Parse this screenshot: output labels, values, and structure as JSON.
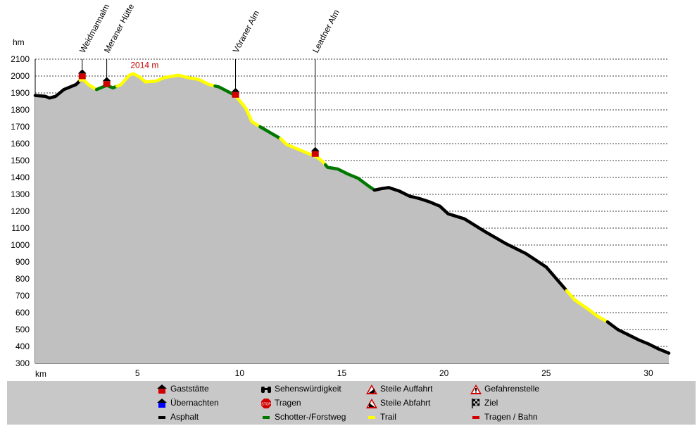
{
  "chart_data": {
    "type": "area",
    "title": "",
    "xlabel": "km",
    "ylabel": "hm",
    "xlim": [
      0,
      31
    ],
    "ylim": [
      300,
      2100
    ],
    "x_ticks": [
      5,
      10,
      15,
      20,
      25,
      30
    ],
    "y_ticks": [
      300,
      400,
      500,
      600,
      700,
      800,
      900,
      1000,
      1100,
      1200,
      1300,
      1400,
      1500,
      1600,
      1700,
      1800,
      1900,
      2000,
      2100
    ],
    "grid": true,
    "profile": [
      [
        0,
        1885
      ],
      [
        0.5,
        1880
      ],
      [
        0.7,
        1870
      ],
      [
        1.0,
        1880
      ],
      [
        1.4,
        1920
      ],
      [
        1.8,
        1940
      ],
      [
        2.0,
        1950
      ],
      [
        2.3,
        1985
      ],
      [
        2.6,
        1950
      ],
      [
        3.0,
        1920
      ],
      [
        3.3,
        1935
      ],
      [
        3.5,
        1945
      ],
      [
        3.8,
        1930
      ],
      [
        4.2,
        1950
      ],
      [
        4.6,
        2005
      ],
      [
        4.8,
        2014
      ],
      [
        5.1,
        1995
      ],
      [
        5.4,
        1965
      ],
      [
        5.9,
        1970
      ],
      [
        6.3,
        1990
      ],
      [
        7.0,
        2005
      ],
      [
        7.5,
        1990
      ],
      [
        8.0,
        1980
      ],
      [
        8.5,
        1950
      ],
      [
        9.0,
        1935
      ],
      [
        9.4,
        1910
      ],
      [
        9.8,
        1885
      ],
      [
        10.3,
        1810
      ],
      [
        10.6,
        1730
      ],
      [
        11.0,
        1700
      ],
      [
        11.5,
        1665
      ],
      [
        12.0,
        1630
      ],
      [
        12.3,
        1595
      ],
      [
        12.8,
        1570
      ],
      [
        13.3,
        1545
      ],
      [
        13.8,
        1520
      ],
      [
        14.1,
        1490
      ],
      [
        14.3,
        1460
      ],
      [
        14.8,
        1450
      ],
      [
        15.3,
        1420
      ],
      [
        15.8,
        1395
      ],
      [
        16.3,
        1350
      ],
      [
        16.6,
        1325
      ],
      [
        17.0,
        1335
      ],
      [
        17.3,
        1340
      ],
      [
        17.8,
        1320
      ],
      [
        18.3,
        1290
      ],
      [
        18.8,
        1275
      ],
      [
        19.3,
        1255
      ],
      [
        19.8,
        1230
      ],
      [
        20.2,
        1185
      ],
      [
        20.6,
        1170
      ],
      [
        21.0,
        1155
      ],
      [
        22.0,
        1080
      ],
      [
        23.0,
        1010
      ],
      [
        24.0,
        950
      ],
      [
        25.0,
        870
      ],
      [
        26.0,
        730
      ],
      [
        26.4,
        675
      ],
      [
        27.0,
        625
      ],
      [
        27.5,
        580
      ],
      [
        28.0,
        545
      ],
      [
        28.5,
        500
      ],
      [
        29.0,
        470
      ],
      [
        29.5,
        440
      ],
      [
        30.0,
        415
      ],
      [
        30.5,
        385
      ],
      [
        31.0,
        360
      ]
    ],
    "segments": [
      {
        "surface": "Asphalt",
        "from": 0,
        "to": 2.2
      },
      {
        "surface": "Trail",
        "from": 2.2,
        "to": 3.0
      },
      {
        "surface": "Schotter-/Forstweg",
        "from": 3.0,
        "to": 4.0
      },
      {
        "surface": "Trail",
        "from": 4.0,
        "to": 8.8
      },
      {
        "surface": "Schotter-/Forstweg",
        "from": 8.8,
        "to": 9.8
      },
      {
        "surface": "Trail",
        "from": 9.8,
        "to": 11.0
      },
      {
        "surface": "Schotter-/Forstweg",
        "from": 11.0,
        "to": 12.0
      },
      {
        "surface": "Trail",
        "from": 12.0,
        "to": 14.2
      },
      {
        "surface": "Schotter-/Forstweg",
        "from": 14.2,
        "to": 16.6
      },
      {
        "surface": "Asphalt",
        "from": 16.6,
        "to": 26.0
      },
      {
        "surface": "Trail",
        "from": 26.0,
        "to": 28.0
      },
      {
        "surface": "Asphalt",
        "from": 28.0,
        "to": 31.0
      }
    ],
    "surface_colors": {
      "Asphalt": "#000000",
      "Trail": "#ffff00",
      "Schotter-/Forstweg": "#007800"
    },
    "fill_color": "#c0c0c0",
    "pois": [
      {
        "name": "Weidmannalm",
        "km": 2.3,
        "alt": 1990
      },
      {
        "name": "Meraner Hütte",
        "km": 3.5,
        "alt": 1945
      },
      {
        "name": "Vöraner Alm",
        "km": 9.8,
        "alt": 1880
      },
      {
        "name": "Leadner Alm",
        "km": 13.7,
        "alt": 1530
      }
    ],
    "peak_annotation": {
      "text": "2014 m",
      "km": 4.8,
      "alt": 2014
    }
  },
  "legend": [
    {
      "label": "Gaststätte",
      "icon": "restaurant-hut-icon",
      "color": "#d00000"
    },
    {
      "label": "Sehenswürdigkeit",
      "icon": "binoculars-icon",
      "color": "#000000"
    },
    {
      "label": "Steile Auffahrt",
      "icon": "steep-uphill-warning-icon",
      "color": "#d00000"
    },
    {
      "label": "Gefahrenstelle",
      "icon": "danger-warning-icon",
      "color": "#d00000"
    },
    {
      "label": "Übernachten",
      "icon": "lodging-hut-icon",
      "color": "#0000ff"
    },
    {
      "label": "Tragen",
      "icon": "stop-carry-icon",
      "color": "#d00000"
    },
    {
      "label": "Steile Abfahrt",
      "icon": "steep-downhill-warning-icon",
      "color": "#d00000"
    },
    {
      "label": "Ziel",
      "icon": "checkered-flag-icon",
      "color": "#000000"
    },
    {
      "label": "Asphalt",
      "icon": "asphalt-line-icon",
      "color": "#000000"
    },
    {
      "label": "Schotter-/Forstweg",
      "icon": "gravel-line-icon",
      "color": "#007800"
    },
    {
      "label": "Trail",
      "icon": "trail-line-icon",
      "color": "#ffff00"
    },
    {
      "label": "Tragen / Bahn",
      "icon": "carry-rail-line-icon",
      "color": "#d00000"
    }
  ]
}
